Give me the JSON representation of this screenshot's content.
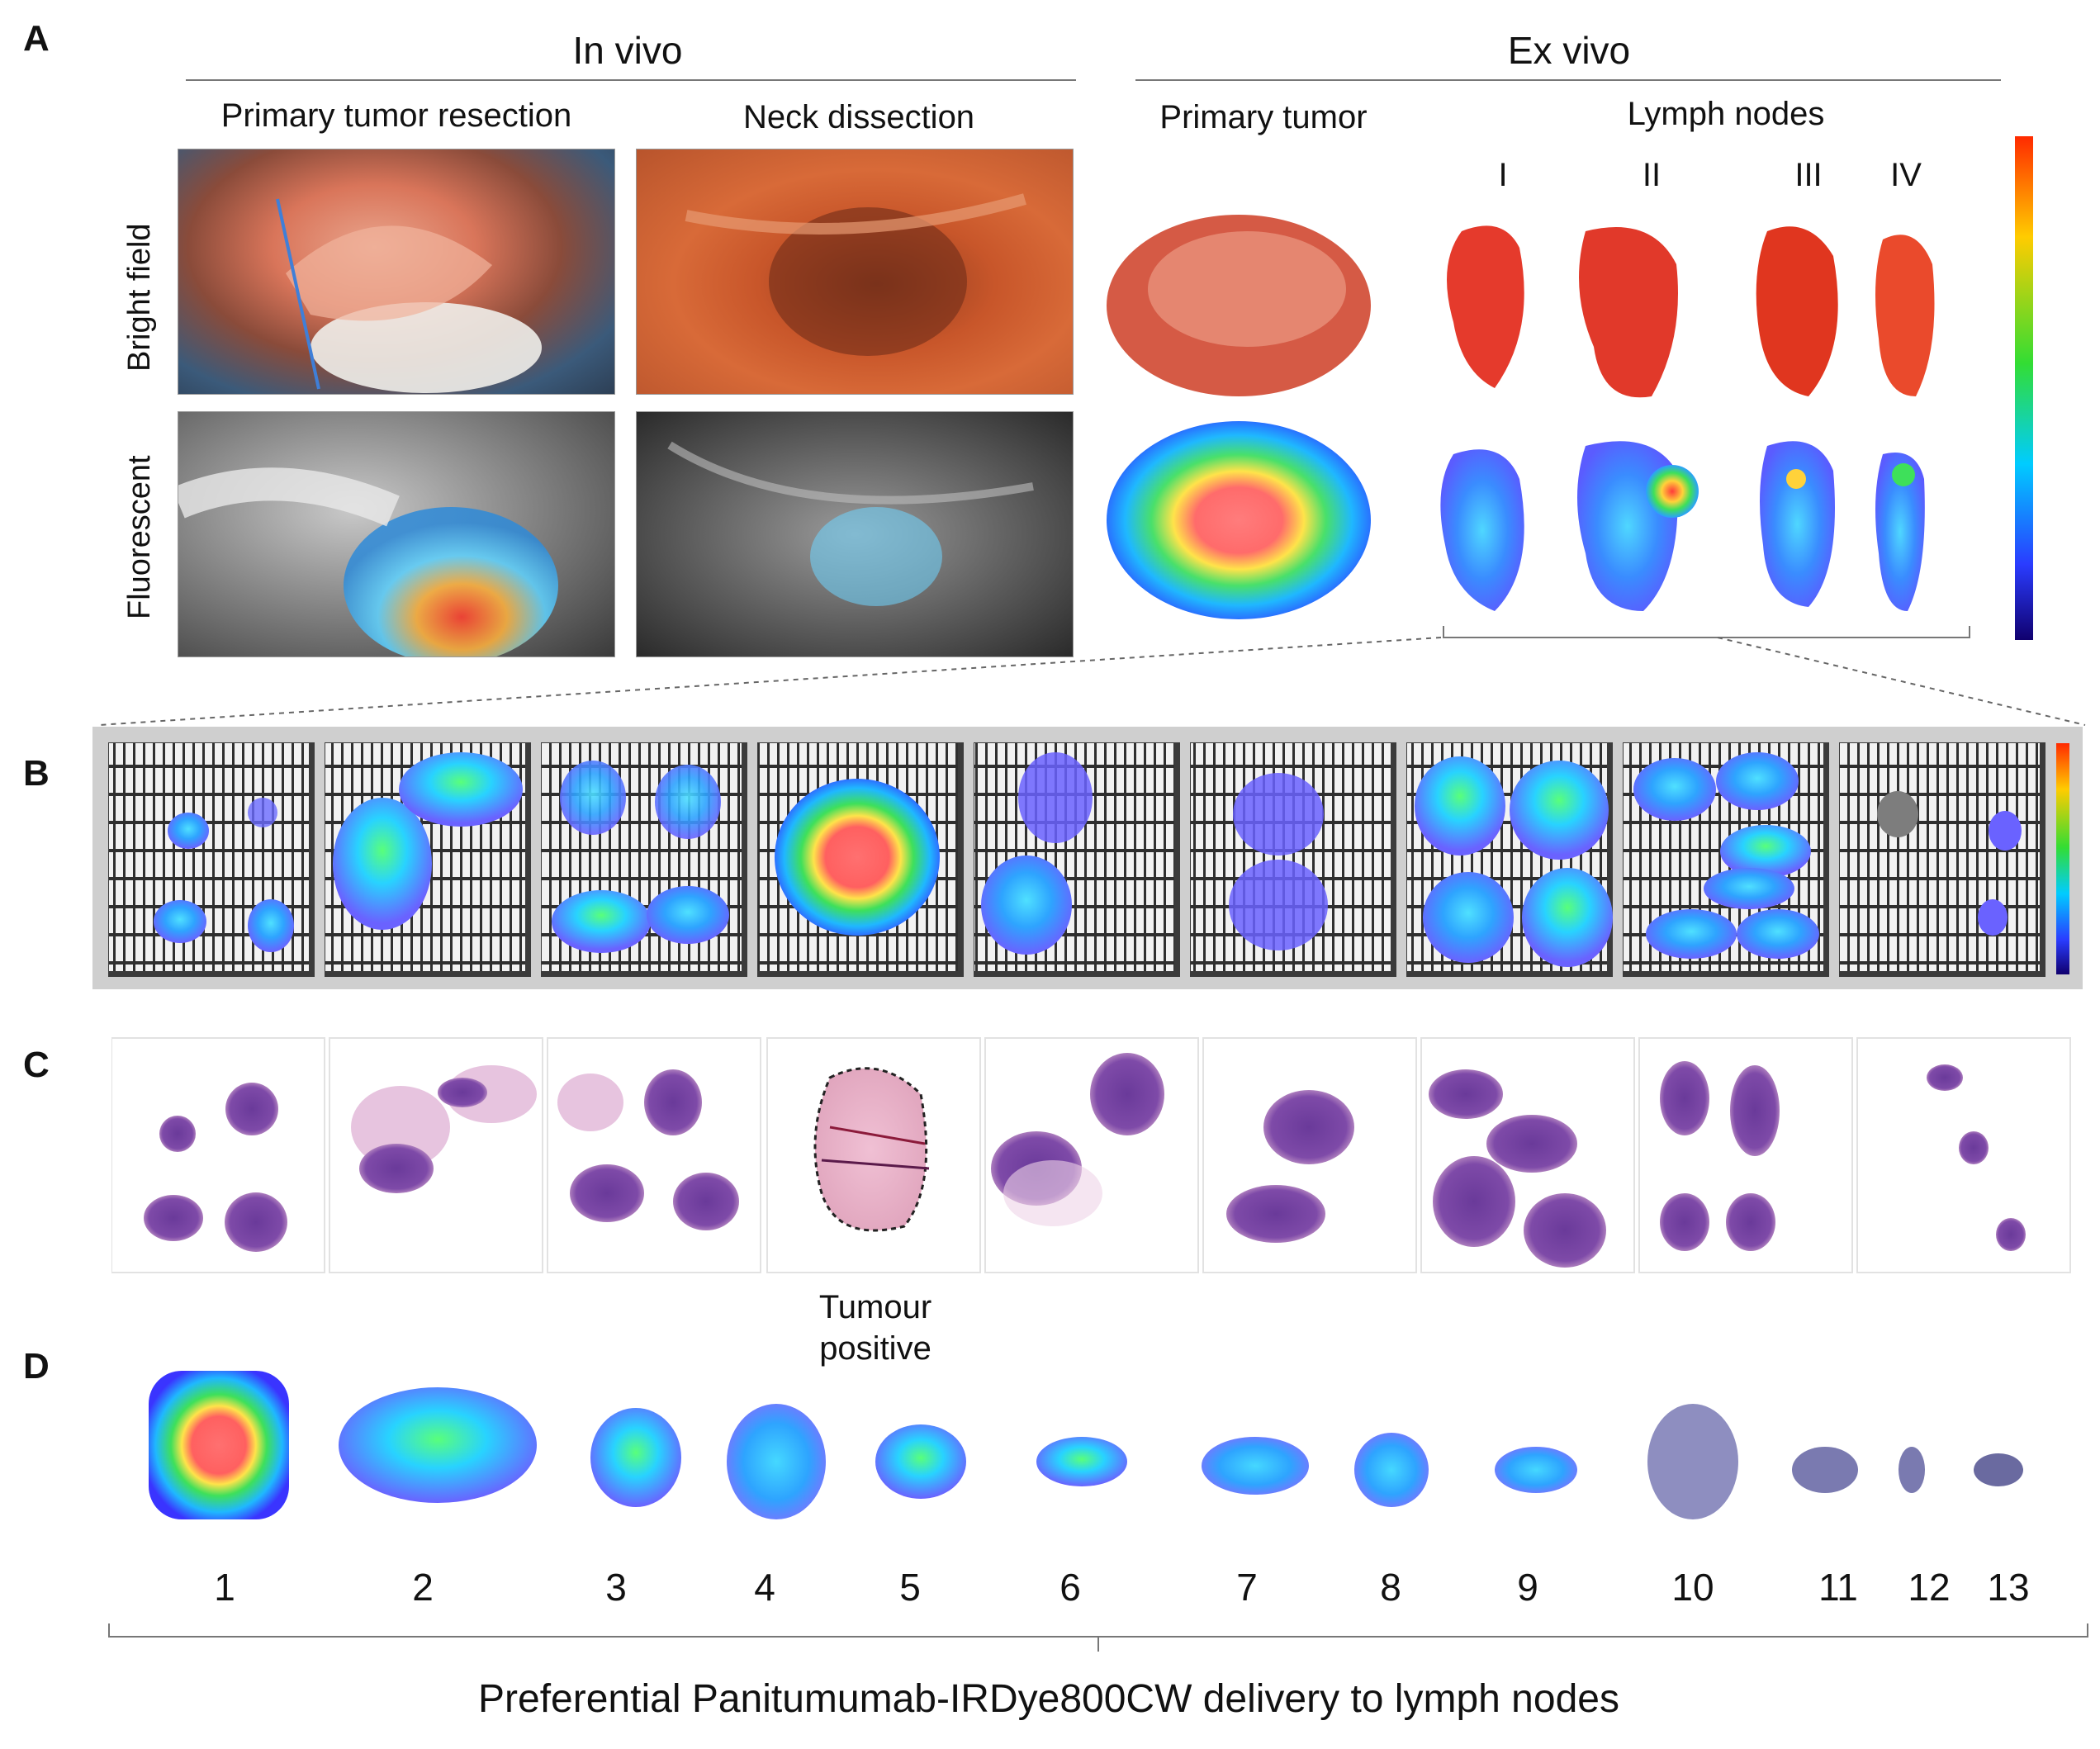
{
  "panel_labels": {
    "a": "A",
    "b": "B",
    "c": "C",
    "d": "D"
  },
  "panel_a": {
    "in_vivo_title": "In vivo",
    "ex_vivo_title": "Ex vivo",
    "col_primary_resection": "Primary tumor resection",
    "col_neck_dissection": "Neck dissection",
    "row_bright_field": "Bright field",
    "row_fluorescent": "Fluorescent",
    "primary_tumor_label": "Primary tumor",
    "lymph_nodes_label": "Lymph nodes",
    "levels": [
      "I",
      "II",
      "III",
      "IV"
    ]
  },
  "panel_c": {
    "tumour_positive": "Tumour positive"
  },
  "panel_d": {
    "numbers": [
      "1",
      "2",
      "3",
      "4",
      "5",
      "6",
      "7",
      "8",
      "9",
      "10",
      "11",
      "12",
      "13"
    ],
    "caption": "Preferential Panitumumab-IRDye800CW delivery to lymph nodes"
  },
  "colorbar_stops": [
    "#ff2a00",
    "#ffcc00",
    "#33dd33",
    "#00ccff",
    "#2a3cff",
    "#10006e"
  ]
}
